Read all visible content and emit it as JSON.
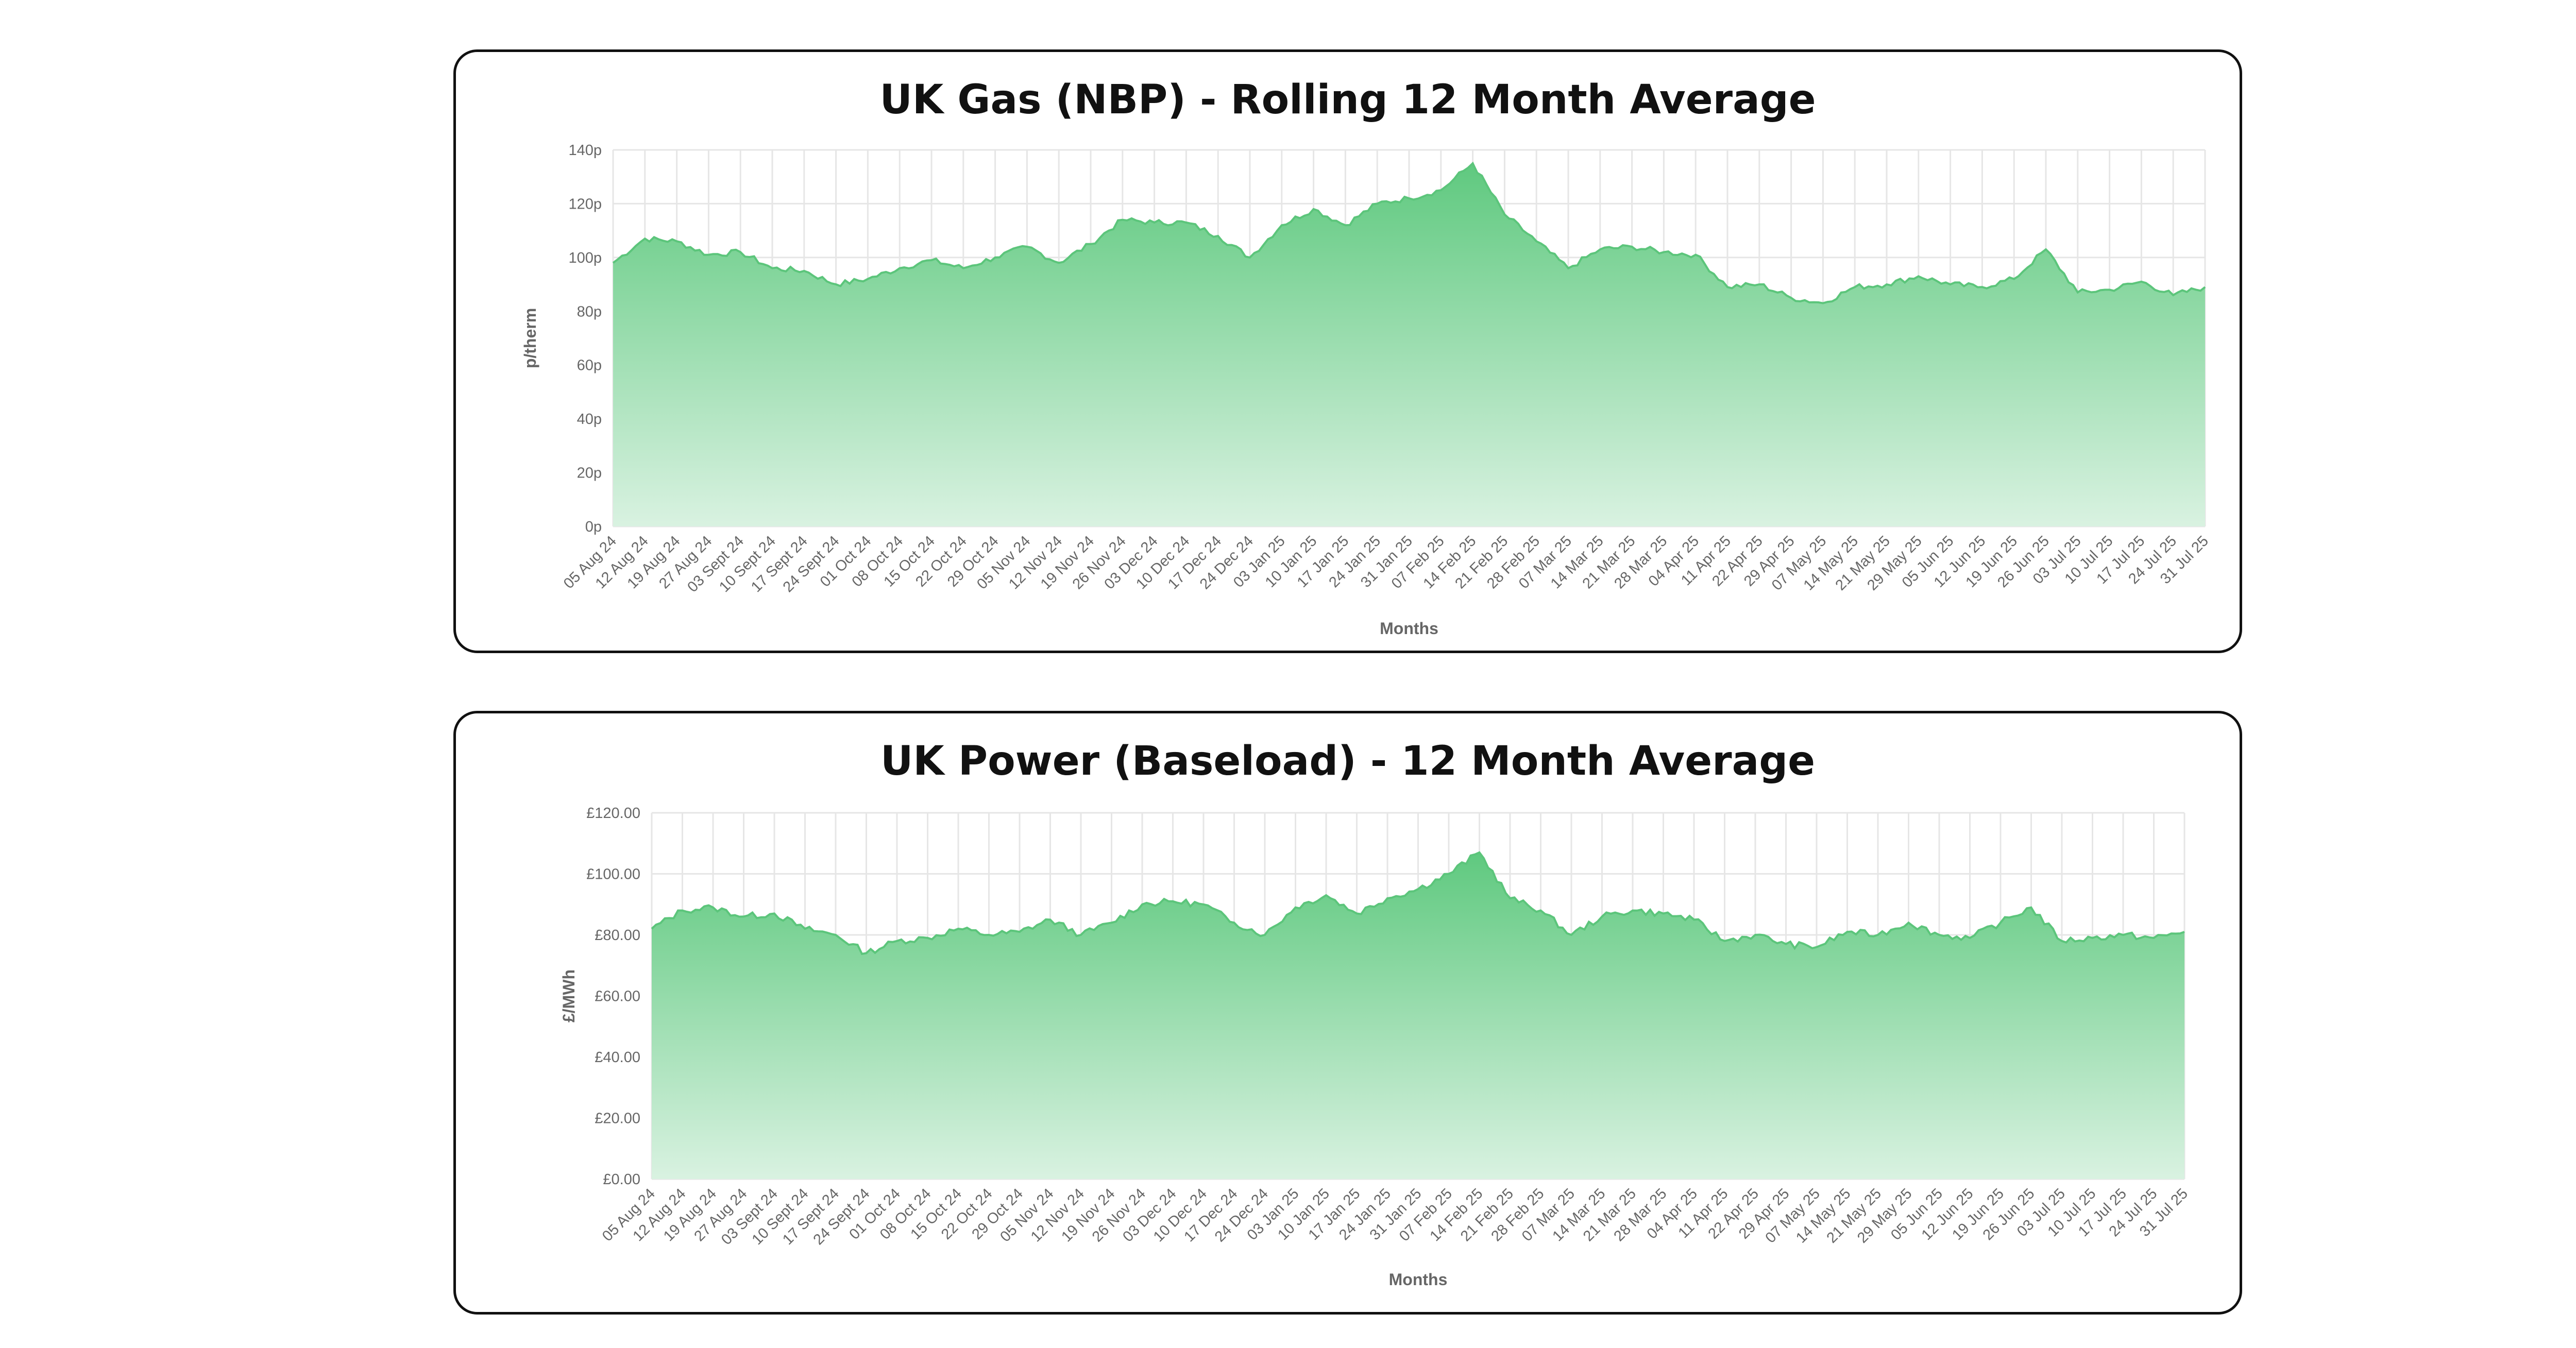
{
  "colors": {
    "area_top": "#5fc97f",
    "area_bottom": "#d9f2e1",
    "line": "#5cc57b",
    "grid": "#e6e6e6",
    "tick_text": "#666666",
    "title_text": "#111111"
  },
  "chart_data": [
    {
      "type": "area",
      "title": "UK Gas (NBP) - Rolling 12 Month Average",
      "xlabel": "Months",
      "ylabel": "p/therm",
      "ylim": [
        0,
        140
      ],
      "yticks": [
        0,
        20,
        40,
        60,
        80,
        100,
        120,
        140
      ],
      "ytick_labels": [
        "0p",
        "20p",
        "40p",
        "60p",
        "80p",
        "100p",
        "120p",
        "140p"
      ],
      "grid": true,
      "x_tick_labels": [
        "05 Aug 24",
        "12 Aug 24",
        "19 Aug 24",
        "27 Aug 24",
        "03 Sept 24",
        "10 Sept 24",
        "17 Sept 24",
        "24 Sept 24",
        "01 Oct 24",
        "08 Oct 24",
        "15 Oct 24",
        "22 Oct 24",
        "29 Oct 24",
        "05 Nov 24",
        "12 Nov 24",
        "19 Nov 24",
        "26 Nov 24",
        "03 Dec 24",
        "10 Dec 24",
        "17 Dec 24",
        "24 Dec 24",
        "03 Jan 25",
        "10 Jan 25",
        "17 Jan 25",
        "24 Jan 25",
        "31 Jan 25",
        "07 Feb 25",
        "14 Feb 25",
        "21 Feb 25",
        "28 Feb 25",
        "07 Mar 25",
        "14 Mar 25",
        "21 Mar 25",
        "28 Mar 25",
        "04 Apr 25",
        "11 Apr 25",
        "22 Apr 25",
        "29 Apr 25",
        "07 May 25",
        "14 May 25",
        "21 May 25",
        "29 May 25",
        "05 Jun 25",
        "12 Jun 25",
        "19 Jun 25",
        "26 Jun 25",
        "03 Jul 25",
        "10 Jul 25",
        "17 Jul 25",
        "24 Jul 25",
        "31 Jul 25"
      ],
      "series": [
        {
          "values": [
            98,
            107,
            106,
            101,
            102,
            96,
            95,
            90,
            92,
            96,
            99,
            96,
            100,
            104,
            98,
            105,
            114,
            113,
            113,
            108,
            100,
            112,
            118,
            112,
            120,
            122,
            125,
            135,
            116,
            106,
            96,
            103,
            104,
            102,
            101,
            89,
            90,
            85,
            83,
            89,
            90,
            93,
            90,
            89,
            92,
            103,
            87,
            88,
            91,
            86,
            89
          ]
        }
      ]
    },
    {
      "type": "area",
      "title": "UK Power (Baseload) - 12 Month Average",
      "xlabel": "Months",
      "ylabel": "£/MWh",
      "ylim": [
        0,
        120
      ],
      "yticks": [
        0,
        20,
        40,
        60,
        80,
        100,
        120
      ],
      "ytick_labels": [
        "£0.00",
        "£20.00",
        "£40.00",
        "£60.00",
        "£80.00",
        "£100.00",
        "£120.00"
      ],
      "grid": true,
      "x_tick_labels": [
        "05 Aug 24",
        "12 Aug 24",
        "19 Aug 24",
        "27 Aug 24",
        "03 Sept 24",
        "10 Sept 24",
        "17 Sept 24",
        "24 Sept 24",
        "01 Oct 24",
        "08 Oct 24",
        "15 Oct 24",
        "22 Oct 24",
        "29 Oct 24",
        "05 Nov 24",
        "12 Nov 24",
        "19 Nov 24",
        "26 Nov 24",
        "03 Dec 24",
        "10 Dec 24",
        "17 Dec 24",
        "24 Dec 24",
        "03 Jan 25",
        "10 Jan 25",
        "17 Jan 25",
        "24 Jan 25",
        "31 Jan 25",
        "07 Feb 25",
        "14 Feb 25",
        "21 Feb 25",
        "28 Feb 25",
        "07 Mar 25",
        "14 Mar 25",
        "21 Mar 25",
        "28 Mar 25",
        "04 Apr 25",
        "11 Apr 25",
        "22 Apr 25",
        "29 Apr 25",
        "07 May 25",
        "14 May 25",
        "21 May 25",
        "29 May 25",
        "05 Jun 25",
        "12 Jun 25",
        "19 Jun 25",
        "26 Jun 25",
        "03 Jul 25",
        "10 Jul 25",
        "17 Jul 25",
        "24 Jul 25",
        "31 Jul 25"
      ],
      "series": [
        {
          "values": [
            82,
            88,
            89,
            86,
            87,
            82,
            80,
            74,
            78,
            79,
            82,
            80,
            81,
            85,
            80,
            84,
            90,
            91,
            90,
            84,
            80,
            89,
            93,
            87,
            92,
            95,
            100,
            107,
            92,
            88,
            80,
            86,
            88,
            87,
            85,
            78,
            80,
            77,
            76,
            81,
            80,
            84,
            80,
            79,
            84,
            89,
            78,
            79,
            80,
            79,
            81
          ]
        }
      ]
    }
  ]
}
